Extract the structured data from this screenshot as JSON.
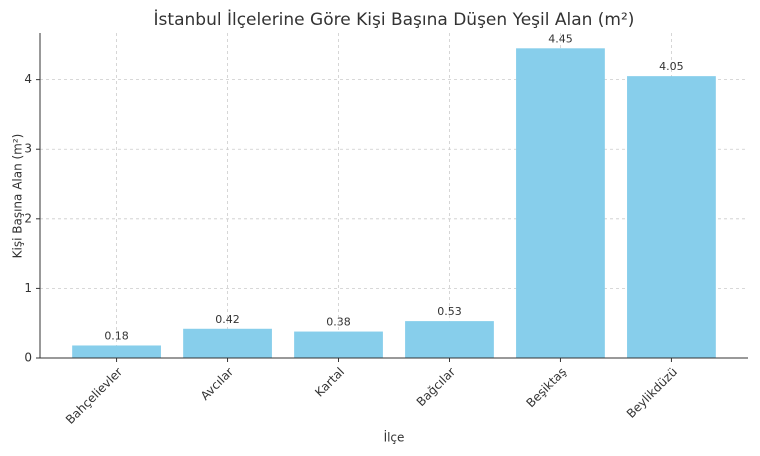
{
  "chart_data": {
    "type": "bar",
    "title": "İstanbul İlçelerine Göre Kişi Başına Düşen Yeşil Alan (m²)",
    "x_label": "İlçe",
    "y_label": "Kişi Başına Alan (m²)",
    "categories": [
      "Bahçelievler",
      "Avcılar",
      "Kartal",
      "Bağcılar",
      "Beşiktaş",
      "Beylikdüzü"
    ],
    "values": [
      0.18,
      0.42,
      0.38,
      0.53,
      4.45,
      4.05
    ],
    "color": "#87ceeb",
    "ylim": [
      0,
      4.67
    ],
    "yticks": [
      0,
      1,
      2,
      3,
      4
    ],
    "grid": true
  }
}
